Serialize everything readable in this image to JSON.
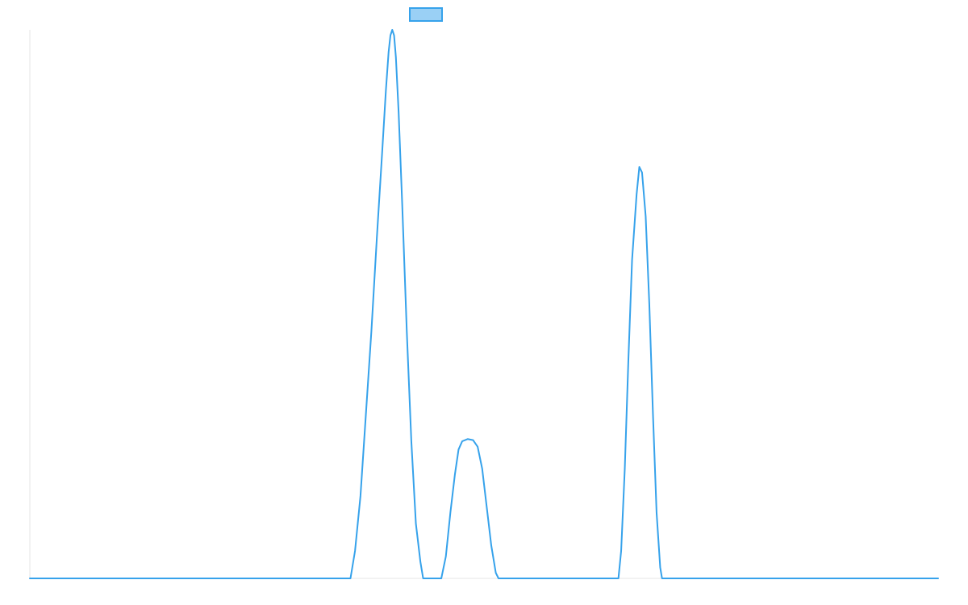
{
  "chart_data": {
    "type": "line",
    "title": "",
    "xlabel": "",
    "ylabel": "",
    "grid": false,
    "legend_position": "top",
    "colors": {
      "series_line": "#36a2eb",
      "legend_fill": "#9ad0f5",
      "axis": "#e6e6e6"
    },
    "xlim": [
      0,
      100
    ],
    "ylim": [
      0,
      100
    ],
    "series": [
      {
        "points": [
          [
            0,
            0
          ],
          [
            35.3,
            0
          ],
          [
            35.8,
            5
          ],
          [
            36.4,
            15
          ],
          [
            37,
            30
          ],
          [
            37.6,
            45
          ],
          [
            38.2,
            62
          ],
          [
            38.8,
            78
          ],
          [
            39.2,
            89
          ],
          [
            39.5,
            96
          ],
          [
            39.7,
            99
          ],
          [
            39.9,
            100
          ],
          [
            40.1,
            99
          ],
          [
            40.3,
            95
          ],
          [
            40.6,
            85
          ],
          [
            41,
            68
          ],
          [
            41.5,
            45
          ],
          [
            42,
            25
          ],
          [
            42.5,
            10
          ],
          [
            43,
            3
          ],
          [
            43.3,
            0
          ],
          [
            45.3,
            0
          ],
          [
            45.8,
            4
          ],
          [
            46.3,
            12
          ],
          [
            46.8,
            19
          ],
          [
            47.2,
            23.5
          ],
          [
            47.6,
            25
          ],
          [
            48.2,
            25.4
          ],
          [
            48.8,
            25.2
          ],
          [
            49.3,
            24
          ],
          [
            49.8,
            20
          ],
          [
            50.3,
            13
          ],
          [
            50.8,
            6
          ],
          [
            51.3,
            1
          ],
          [
            51.6,
            0
          ],
          [
            64.8,
            0
          ],
          [
            65.1,
            5
          ],
          [
            65.5,
            20
          ],
          [
            65.9,
            40
          ],
          [
            66.3,
            58
          ],
          [
            66.8,
            70
          ],
          [
            67.1,
            75
          ],
          [
            67.4,
            74
          ],
          [
            67.8,
            66
          ],
          [
            68.2,
            50
          ],
          [
            68.6,
            30
          ],
          [
            69,
            12
          ],
          [
            69.4,
            2
          ],
          [
            69.6,
            0
          ],
          [
            100,
            0
          ]
        ]
      }
    ]
  }
}
